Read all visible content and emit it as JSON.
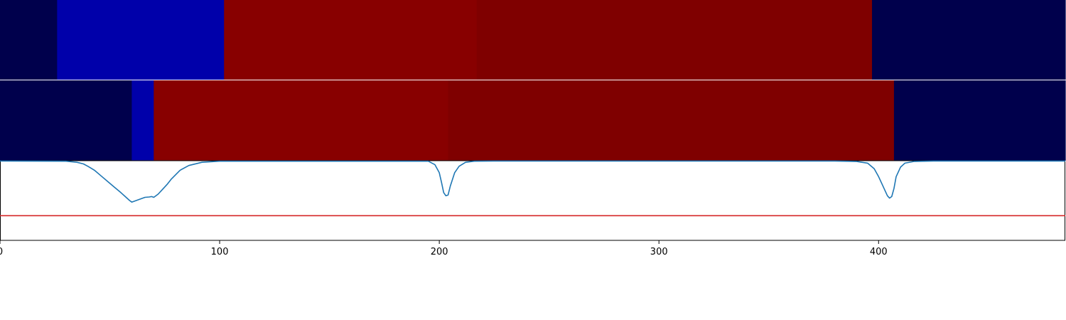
{
  "chart_data": [
    {
      "type": "heatmap",
      "panel": "top-segmentation-strip",
      "xlim": [
        0,
        485
      ],
      "segments": [
        {
          "start": 0,
          "end": 26,
          "color": "#00004c"
        },
        {
          "start": 26,
          "end": 102,
          "color": "#0000aa"
        },
        {
          "start": 102,
          "end": 217,
          "color": "#880000"
        },
        {
          "start": 217,
          "end": 397,
          "color": "#7f0000"
        },
        {
          "start": 397,
          "end": 485,
          "color": "#00004c"
        }
      ]
    },
    {
      "type": "heatmap",
      "panel": "middle-segmentation-strip",
      "xlim": [
        0,
        485
      ],
      "segments": [
        {
          "start": 0,
          "end": 60,
          "color": "#00004c"
        },
        {
          "start": 60,
          "end": 70,
          "color": "#0000aa"
        },
        {
          "start": 70,
          "end": 204,
          "color": "#880000"
        },
        {
          "start": 204,
          "end": 407,
          "color": "#7f0000"
        },
        {
          "start": 407,
          "end": 485,
          "color": "#00004c"
        }
      ]
    },
    {
      "type": "line",
      "panel": "bottom-signal-plot",
      "xlim": [
        0,
        485
      ],
      "ylim": [
        0,
        1
      ],
      "grid": false,
      "xticks": [
        0,
        100,
        200,
        300,
        400
      ],
      "xtick_labels": [
        "0",
        "100",
        "200",
        "300",
        "400"
      ],
      "series": [
        {
          "color": "#1f77b4",
          "x": [
            0,
            30,
            35,
            38,
            40,
            43,
            46,
            49,
            52,
            55,
            57,
            59,
            60,
            62,
            64,
            66,
            68,
            69,
            70,
            72,
            74,
            76,
            78,
            82,
            86,
            92,
            100,
            195,
            198,
            200,
            201,
            202,
            203,
            204,
            205,
            207,
            209,
            212,
            216,
            225,
            380,
            390,
            395,
            398,
            400,
            402,
            404,
            405,
            406,
            407,
            408,
            410,
            412,
            416,
            425,
            485
          ],
          "y": [
            0.996,
            0.994,
            0.98,
            0.96,
            0.93,
            0.88,
            0.81,
            0.74,
            0.67,
            0.6,
            0.55,
            0.5,
            0.48,
            0.5,
            0.52,
            0.54,
            0.545,
            0.55,
            0.54,
            0.58,
            0.64,
            0.7,
            0.77,
            0.88,
            0.94,
            0.98,
            0.994,
            0.994,
            0.95,
            0.85,
            0.73,
            0.6,
            0.56,
            0.57,
            0.68,
            0.85,
            0.93,
            0.98,
            0.994,
            0.996,
            0.996,
            0.99,
            0.97,
            0.9,
            0.8,
            0.68,
            0.56,
            0.53,
            0.55,
            0.65,
            0.8,
            0.92,
            0.97,
            0.99,
            0.996,
            0.996
          ]
        },
        {
          "color": "#d62728",
          "x": [
            0,
            485
          ],
          "y": [
            0.31,
            0.31
          ]
        }
      ]
    }
  ]
}
